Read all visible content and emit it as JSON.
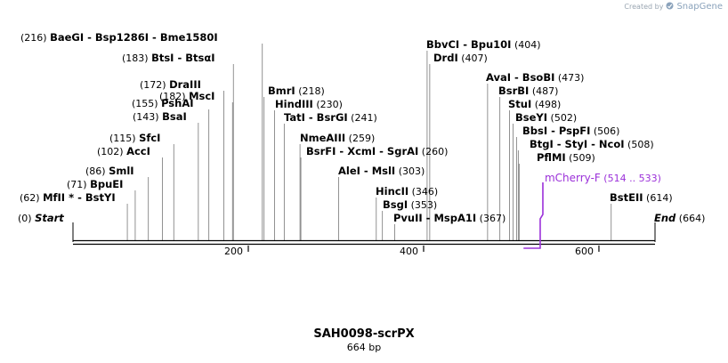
{
  "credit": {
    "prefix": "Created by",
    "brand": "SnapGene"
  },
  "map": {
    "name": "SAH0098-scrPX",
    "length_label": "664 bp",
    "length": 664,
    "ticks": [
      200,
      400,
      600
    ],
    "feature": {
      "name": "mCherry-F",
      "range": "(514 .. 533)",
      "start": 514,
      "end": 533,
      "color": "#9b30d9"
    },
    "sites": [
      {
        "label": "BaeGI",
        "extra": [
          " -  Bsp1286I",
          " -  Bme1580I"
        ],
        "pos": 216,
        "pos_text": "(216)",
        "side": "left"
      },
      {
        "label": "BtsI",
        "extra": [
          " -  BtsαI"
        ],
        "pos": 183,
        "pos_text": "(183)",
        "side": "left"
      },
      {
        "label": "MscI",
        "extra": [],
        "pos": 182,
        "pos_text": "(182)",
        "side": "left"
      },
      {
        "label": "DraIII",
        "extra": [],
        "pos": 172,
        "pos_text": "(172)",
        "side": "left"
      },
      {
        "label": "PshAI",
        "extra": [],
        "pos": 155,
        "pos_text": "(155)",
        "side": "left"
      },
      {
        "label": "BsaI",
        "extra": [],
        "pos": 143,
        "pos_text": "(143)",
        "side": "left"
      },
      {
        "label": "SfcI",
        "extra": [],
        "pos": 115,
        "pos_text": "(115)",
        "side": "left"
      },
      {
        "label": "AccI",
        "extra": [],
        "pos": 102,
        "pos_text": "(102)",
        "side": "left"
      },
      {
        "label": "SmlI",
        "extra": [],
        "pos": 86,
        "pos_text": "(86)",
        "side": "left"
      },
      {
        "label": "BpuEI",
        "extra": [],
        "pos": 71,
        "pos_text": "(71)",
        "side": "left"
      },
      {
        "label": "MfII",
        "extra": [
          " * -  BstYI"
        ],
        "pos": 62,
        "pos_text": "(62)",
        "side": "left"
      },
      {
        "label": "BmrI",
        "extra": [],
        "pos": 218,
        "pos_text": "(218)",
        "side": "right"
      },
      {
        "label": "HindIII",
        "extra": [],
        "pos": 230,
        "pos_text": "(230)",
        "side": "right"
      },
      {
        "label": "TatI",
        "extra": [
          " -  BsrGI"
        ],
        "pos": 241,
        "pos_text": "(241)",
        "side": "right"
      },
      {
        "label": "NmeAIII",
        "extra": [],
        "pos": 259,
        "pos_text": "(259)",
        "side": "right"
      },
      {
        "label": "BsrFI",
        "extra": [
          " -  XcmI",
          " -  SgrAI"
        ],
        "pos": 260,
        "pos_text": "(260)",
        "side": "right"
      },
      {
        "label": "AleI",
        "extra": [
          " -  MslI"
        ],
        "pos": 303,
        "pos_text": "(303)",
        "side": "right"
      },
      {
        "label": "HincII",
        "extra": [],
        "pos": 346,
        "pos_text": "(346)",
        "side": "right"
      },
      {
        "label": "BsgI",
        "extra": [],
        "pos": 353,
        "pos_text": "(353)",
        "side": "right"
      },
      {
        "label": "PvuII",
        "extra": [
          " -  MspA1I"
        ],
        "pos": 367,
        "pos_text": "(367)",
        "side": "right"
      },
      {
        "label": "BbvCI",
        "extra": [
          " -  Bpu10I"
        ],
        "pos": 404,
        "pos_text": "(404)",
        "side": "right"
      },
      {
        "label": "DrdI",
        "extra": [],
        "pos": 407,
        "pos_text": "(407)",
        "side": "right"
      },
      {
        "label": "AvaI",
        "extra": [
          " -  BsoBI"
        ],
        "pos": 473,
        "pos_text": "(473)",
        "side": "right"
      },
      {
        "label": "BsrBI",
        "extra": [],
        "pos": 487,
        "pos_text": "(487)",
        "side": "right"
      },
      {
        "label": "StuI",
        "extra": [],
        "pos": 498,
        "pos_text": "(498)",
        "side": "right"
      },
      {
        "label": "BseYI",
        "extra": [],
        "pos": 502,
        "pos_text": "(502)",
        "side": "right"
      },
      {
        "label": "BbsI",
        "extra": [
          " -  PspFI"
        ],
        "pos": 506,
        "pos_text": "(506)",
        "side": "right"
      },
      {
        "label": "BtgI",
        "extra": [
          " -  StyI",
          " -  NcoI"
        ],
        "pos": 508,
        "pos_text": "(508)",
        "side": "right"
      },
      {
        "label": "PflMI",
        "extra": [],
        "pos": 509,
        "pos_text": "(509)",
        "side": "right"
      },
      {
        "label": "BstEII",
        "extra": [],
        "pos": 614,
        "pos_text": "(614)",
        "side": "right"
      }
    ],
    "ends": {
      "start": {
        "label": "Start",
        "pos_text": "(0)"
      },
      "end": {
        "label": "End",
        "pos_text": "(664)"
      }
    }
  }
}
